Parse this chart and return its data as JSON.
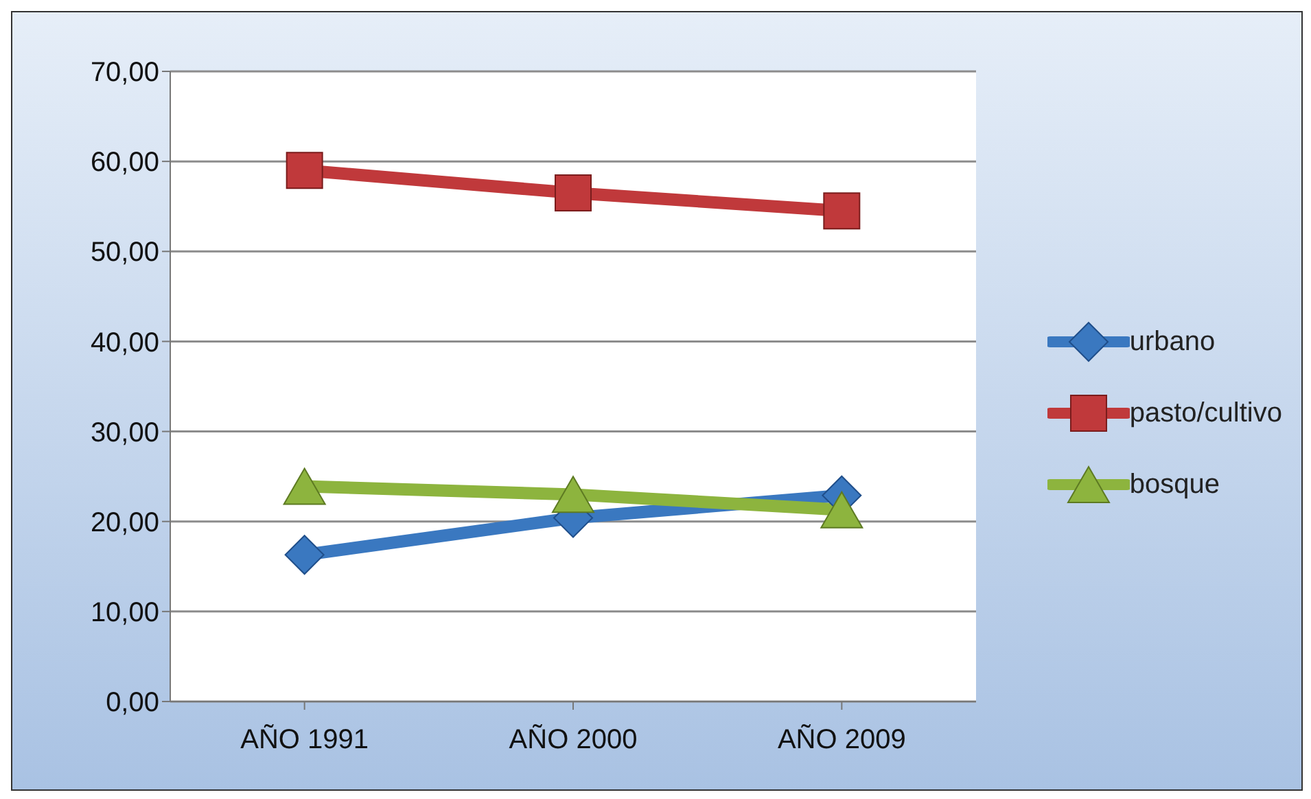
{
  "chart_data": {
    "type": "line",
    "categories": [
      "AÑO 1991",
      "AÑO 2000",
      "AÑO 2009"
    ],
    "series": [
      {
        "name": "urbano",
        "color": "#3a78c0",
        "marker": "diamond",
        "values": [
          16.3,
          20.4,
          22.9
        ]
      },
      {
        "name": "pasto/cultivo",
        "color": "#c0393b",
        "marker": "square",
        "values": [
          59.0,
          56.5,
          54.5
        ]
      },
      {
        "name": "bosque",
        "color": "#8db43e",
        "marker": "triangle",
        "values": [
          23.9,
          23.0,
          21.3
        ]
      }
    ],
    "ylim": [
      0,
      70
    ],
    "yticks": [
      {
        "value": 0,
        "label": "0,00"
      },
      {
        "value": 10,
        "label": "10,00"
      },
      {
        "value": 20,
        "label": "20,00"
      },
      {
        "value": 30,
        "label": "30,00"
      },
      {
        "value": 40,
        "label": "40,00"
      },
      {
        "value": 50,
        "label": "50,00"
      },
      {
        "value": 60,
        "label": "60,00"
      },
      {
        "value": 70,
        "label": "70,00"
      }
    ],
    "grid": "y",
    "legend": "right",
    "line_style": "solid"
  }
}
